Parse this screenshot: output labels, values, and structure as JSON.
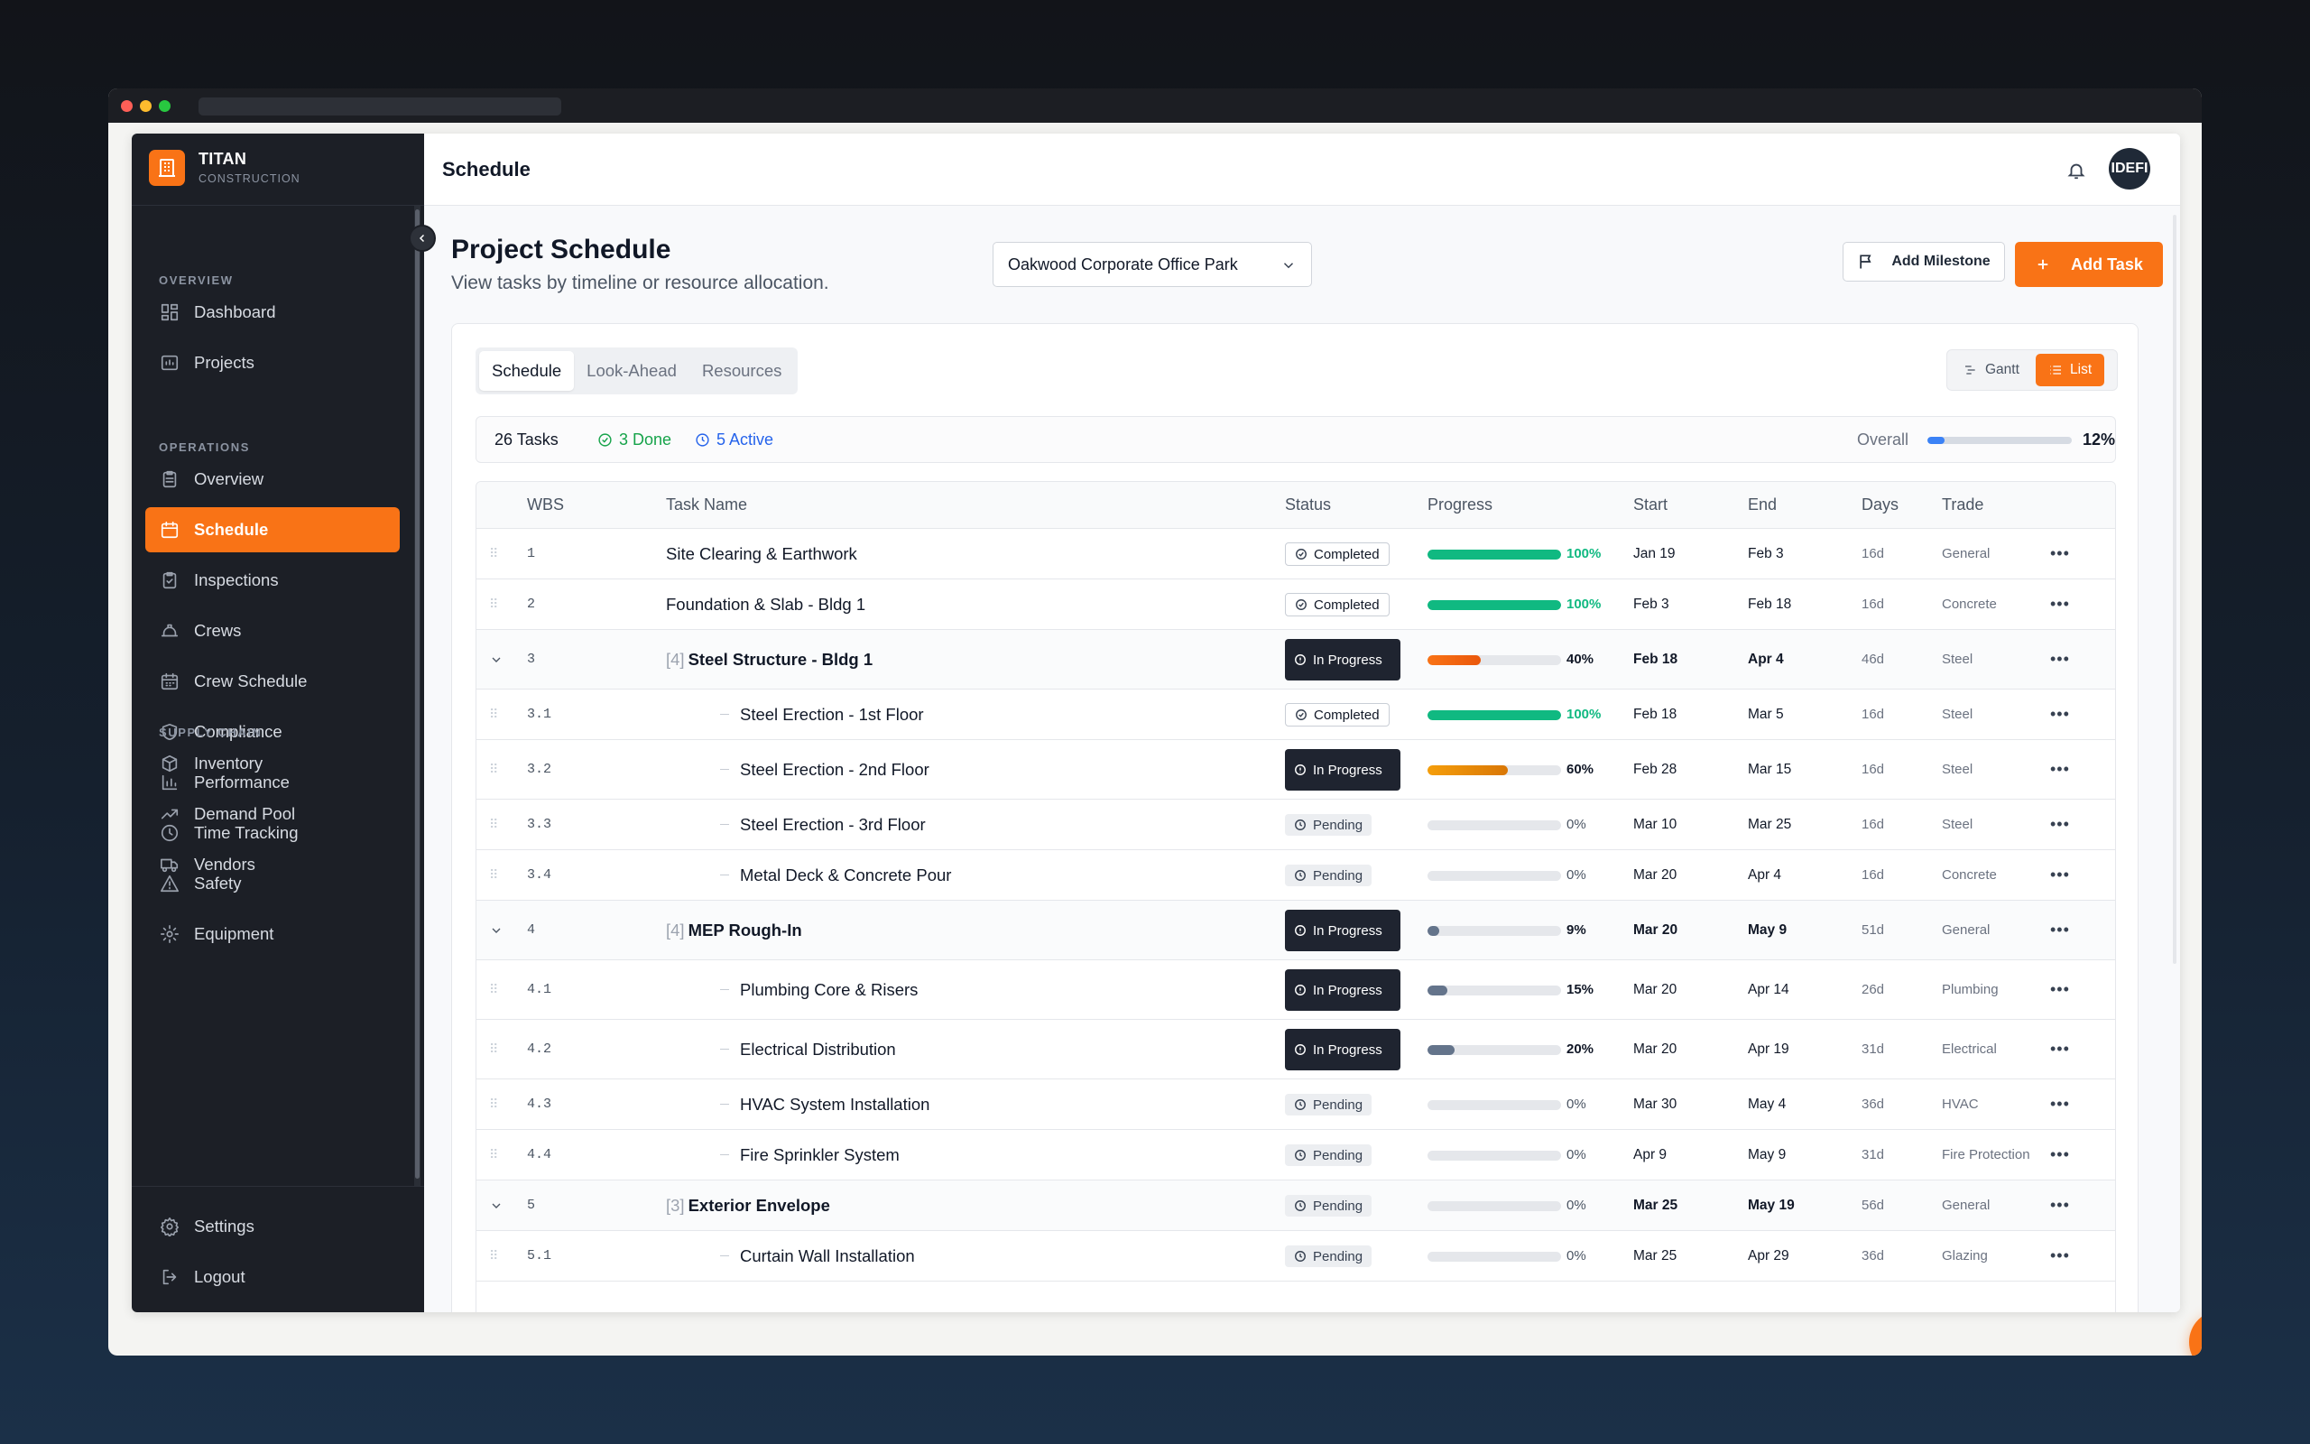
{
  "brand": {
    "name": "TITAN",
    "sub": "CONSTRUCTION"
  },
  "sidebar": {
    "sections": [
      {
        "label": "OVERVIEW",
        "items": [
          {
            "label": "Dashboard",
            "icon": "dashboard-icon"
          },
          {
            "label": "Projects",
            "icon": "folder-icon"
          }
        ]
      },
      {
        "label": "OPERATIONS",
        "items": [
          {
            "label": "Overview",
            "icon": "clipboard-icon"
          },
          {
            "label": "Schedule",
            "icon": "calendar-icon",
            "active": true
          },
          {
            "label": "Inspections",
            "icon": "clipboard-check-icon"
          },
          {
            "label": "Crews",
            "icon": "hard-hat-icon"
          },
          {
            "label": "Crew Schedule",
            "icon": "calendar-grid-icon"
          },
          {
            "label": "Compliance",
            "icon": "shield-icon"
          },
          {
            "label": "Performance",
            "icon": "bar-chart-icon"
          },
          {
            "label": "Time Tracking",
            "icon": "clock-icon"
          },
          {
            "label": "Safety",
            "icon": "warning-triangle-icon"
          },
          {
            "label": "Equipment",
            "icon": "cog-icon"
          }
        ]
      },
      {
        "label": "SUPPLY CHAIN",
        "items": [
          {
            "label": "Inventory",
            "icon": "box-icon"
          },
          {
            "label": "Demand Pool",
            "icon": "trend-up-icon"
          },
          {
            "label": "Vendors",
            "icon": "truck-icon"
          }
        ]
      }
    ],
    "footer": [
      {
        "label": "Settings",
        "icon": "gear-icon"
      },
      {
        "label": "Logout",
        "icon": "logout-icon"
      }
    ]
  },
  "topbar": {
    "title": "Schedule",
    "avatar_initials": "IDEFI"
  },
  "page": {
    "title": "Project Schedule",
    "subtitle": "View tasks by timeline or resource allocation.",
    "project_select": "Oakwood Corporate Office Park",
    "add_milestone": "Add Milestone",
    "add_task": "Add Task"
  },
  "tabs": [
    "Schedule",
    "Look-Ahead",
    "Resources"
  ],
  "view_toggle": {
    "gantt": "Gantt",
    "list": "List",
    "active": "List"
  },
  "summary": {
    "tasks": "26 Tasks",
    "done": "3 Done",
    "active": "5 Active",
    "overall_label": "Overall",
    "overall_pct": "12%",
    "overall_value": 12
  },
  "columns": {
    "wbs": "WBS",
    "name": "Task Name",
    "status": "Status",
    "progress": "Progress",
    "start": "Start",
    "end": "End",
    "days": "Days",
    "trade": "Trade"
  },
  "colors": {
    "accent": "#f97316",
    "done": "#10b981",
    "active": "#3b82f6"
  },
  "tasks": [
    {
      "wbs": "1",
      "name": "Site Clearing & Earthwork",
      "status": "Completed",
      "pct": 100,
      "pct_label": "100%",
      "start": "Jan 19",
      "end": "Feb 3",
      "days": "16d",
      "trade": "General"
    },
    {
      "wbs": "2",
      "name": "Foundation & Slab - Bldg 1",
      "status": "Completed",
      "pct": 100,
      "pct_label": "100%",
      "start": "Feb 3",
      "end": "Feb 18",
      "days": "16d",
      "trade": "Concrete"
    },
    {
      "wbs": "3",
      "name": "Steel Structure - Bldg 1",
      "count": "[4]",
      "parent": true,
      "status": "In Progress",
      "pct": 40,
      "pct_label": "40%",
      "start": "Feb 18",
      "end": "Apr 4",
      "days": "46d",
      "trade": "Steel"
    },
    {
      "wbs": "3.1",
      "name": "Steel Erection - 1st Floor",
      "child": true,
      "status": "Completed",
      "pct": 100,
      "pct_label": "100%",
      "start": "Feb 18",
      "end": "Mar 5",
      "days": "16d",
      "trade": "Steel"
    },
    {
      "wbs": "3.2",
      "name": "Steel Erection - 2nd Floor",
      "child": true,
      "status": "In Progress",
      "pct": 60,
      "pct_label": "60%",
      "start": "Feb 28",
      "end": "Mar 15",
      "days": "16d",
      "trade": "Steel"
    },
    {
      "wbs": "3.3",
      "name": "Steel Erection - 3rd Floor",
      "child": true,
      "status": "Pending",
      "pct": 0,
      "pct_label": "0%",
      "start": "Mar 10",
      "end": "Mar 25",
      "days": "16d",
      "trade": "Steel"
    },
    {
      "wbs": "3.4",
      "name": "Metal Deck & Concrete Pour",
      "child": true,
      "status": "Pending",
      "pct": 0,
      "pct_label": "0%",
      "start": "Mar 20",
      "end": "Apr 4",
      "days": "16d",
      "trade": "Concrete"
    },
    {
      "wbs": "4",
      "name": "MEP Rough-In",
      "count": "[4]",
      "parent": true,
      "status": "In Progress",
      "pct": 9,
      "pct_label": "9%",
      "start": "Mar 20",
      "end": "May 9",
      "days": "51d",
      "trade": "General"
    },
    {
      "wbs": "4.1",
      "name": "Plumbing Core & Risers",
      "child": true,
      "status": "In Progress",
      "pct": 15,
      "pct_label": "15%",
      "start": "Mar 20",
      "end": "Apr 14",
      "days": "26d",
      "trade": "Plumbing"
    },
    {
      "wbs": "4.2",
      "name": "Electrical Distribution",
      "child": true,
      "status": "In Progress",
      "pct": 20,
      "pct_label": "20%",
      "start": "Mar 20",
      "end": "Apr 19",
      "days": "31d",
      "trade": "Electrical"
    },
    {
      "wbs": "4.3",
      "name": "HVAC System Installation",
      "child": true,
      "status": "Pending",
      "pct": 0,
      "pct_label": "0%",
      "start": "Mar 30",
      "end": "May 4",
      "days": "36d",
      "trade": "HVAC"
    },
    {
      "wbs": "4.4",
      "name": "Fire Sprinkler System",
      "child": true,
      "status": "Pending",
      "pct": 0,
      "pct_label": "0%",
      "start": "Apr 9",
      "end": "May 9",
      "days": "31d",
      "trade": "Fire Protection"
    },
    {
      "wbs": "5",
      "name": "Exterior Envelope",
      "count": "[3]",
      "parent": true,
      "status": "Pending",
      "pct": 0,
      "pct_label": "0%",
      "start": "Mar 25",
      "end": "May 19",
      "days": "56d",
      "trade": "General"
    },
    {
      "wbs": "5.1",
      "name": "Curtain Wall Installation",
      "child": true,
      "status": "Pending",
      "pct": 0,
      "pct_label": "0%",
      "start": "Mar 25",
      "end": "Apr 29",
      "days": "36d",
      "trade": "Glazing"
    }
  ]
}
